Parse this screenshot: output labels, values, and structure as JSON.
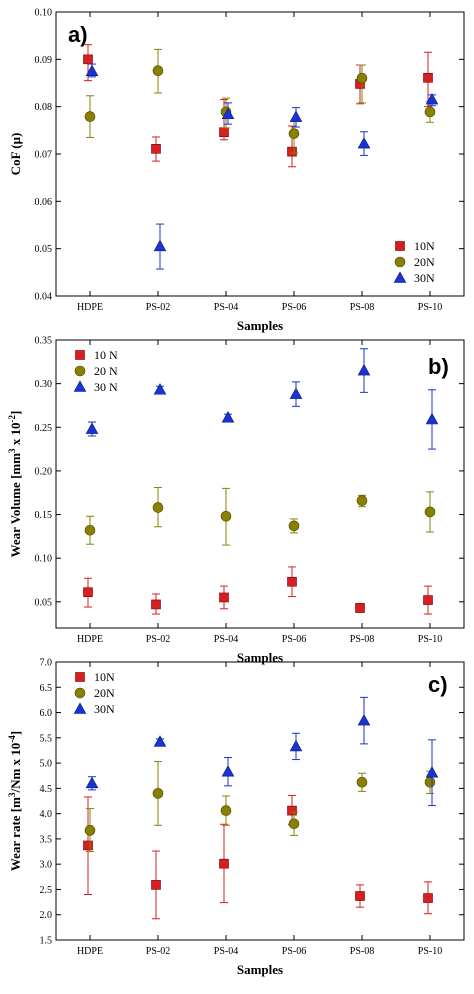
{
  "chart_data": [
    {
      "type": "scatter",
      "panel_label": "a)",
      "categories": [
        "HDPE",
        "PS-02",
        "PS-04",
        "PS-06",
        "PS-08",
        "PS-10"
      ],
      "xlabel": "Samples",
      "ylabel": "CoF (μ)",
      "ylim": [
        0.04,
        0.1
      ],
      "yticks": [
        "0.04",
        "0.05",
        "0.06",
        "0.07",
        "0.08",
        "0.09",
        "0.10"
      ],
      "legend_position": "bottom-right",
      "grid": false,
      "series": [
        {
          "name": "10N",
          "color": "#d42020",
          "marker": "square",
          "values": [
            0.09,
            0.0711,
            0.0746,
            0.0705,
            0.0848,
            0.0861
          ],
          "err_low": [
            0.0855,
            0.0685,
            0.073,
            0.0673,
            0.0806,
            0.08
          ],
          "err_high": [
            0.0931,
            0.0736,
            0.0815,
            0.0759,
            0.0888,
            0.0915
          ]
        },
        {
          "name": "20N",
          "color": "#8a8000",
          "marker": "circle",
          "values": [
            0.0779,
            0.0876,
            0.0789,
            0.0743,
            0.086,
            0.0789
          ],
          "err_low": [
            0.0735,
            0.0829,
            0.0755,
            0.0702,
            0.0808,
            0.0767
          ],
          "err_high": [
            0.0823,
            0.0921,
            0.0818,
            0.0769,
            0.0888,
            0.0811
          ]
        },
        {
          "name": "30N",
          "color": "#1a33d1",
          "marker": "triangle",
          "values": [
            0.0875,
            0.0505,
            0.0784,
            0.0778,
            0.0722,
            0.0815
          ],
          "err_low": [
            0.0863,
            0.0457,
            0.0763,
            0.0757,
            0.0697,
            0.0802
          ],
          "err_high": [
            0.089,
            0.0552,
            0.0808,
            0.0798,
            0.0747,
            0.0825
          ]
        }
      ]
    },
    {
      "type": "scatter",
      "panel_label": "b)",
      "categories": [
        "HDPE",
        "PS-02",
        "PS-04",
        "PS-06",
        "PS-08",
        "PS-10"
      ],
      "xlabel": "Samples",
      "ylabel_main": "Wear Volume [mm",
      "ylabel_sup1": "3",
      "ylabel_mid": " x 10",
      "ylabel_sup2": "-2",
      "ylabel_end": "]",
      "ylim": [
        0.02,
        0.35
      ],
      "yticks": [
        "0.05",
        "0.10",
        "0.15",
        "0.20",
        "0.25",
        "0.30",
        "0.35"
      ],
      "legend_position": "top-left",
      "grid": false,
      "series": [
        {
          "name": "10 N",
          "color": "#d42020",
          "marker": "square",
          "values": [
            0.061,
            0.047,
            0.055,
            0.073,
            0.043,
            0.052
          ],
          "err_low": [
            0.044,
            0.036,
            0.042,
            0.056,
            0.038,
            0.036
          ],
          "err_high": [
            0.077,
            0.059,
            0.068,
            0.09,
            0.048,
            0.068
          ]
        },
        {
          "name": "20 N",
          "color": "#8a8000",
          "marker": "circle",
          "values": [
            0.132,
            0.158,
            0.148,
            0.137,
            0.166,
            0.153
          ],
          "err_low": [
            0.116,
            0.136,
            0.115,
            0.129,
            0.159,
            0.13
          ],
          "err_high": [
            0.148,
            0.181,
            0.18,
            0.145,
            0.172,
            0.176
          ]
        },
        {
          "name": "30 N",
          "color": "#1a33d1",
          "marker": "triangle",
          "values": [
            0.248,
            0.293,
            0.261,
            0.288,
            0.315,
            0.259
          ],
          "err_low": [
            0.24,
            0.289,
            0.257,
            0.274,
            0.29,
            0.225
          ],
          "err_high": [
            0.256,
            0.297,
            0.265,
            0.302,
            0.34,
            0.293
          ]
        }
      ]
    },
    {
      "type": "scatter",
      "panel_label": "c)",
      "categories": [
        "HDPE",
        "PS-02",
        "PS-04",
        "PS-06",
        "PS-08",
        "PS-10"
      ],
      "xlabel": "Samples",
      "ylabel_main": "Wear rate [m",
      "ylabel_sup1": "3",
      "ylabel_mid": "/Nm x 10",
      "ylabel_sup2": "-4",
      "ylabel_end": "]",
      "ylim": [
        1.5,
        7.0
      ],
      "yticks": [
        "1.5",
        "2.0",
        "2.5",
        "3.0",
        "3.5",
        "4.0",
        "4.5",
        "5.0",
        "5.5",
        "6.0",
        "6.5",
        "7.0"
      ],
      "legend_position": "top-left",
      "grid": false,
      "series": [
        {
          "name": "10N",
          "color": "#d42020",
          "marker": "square",
          "values": [
            3.37,
            2.59,
            3.01,
            4.06,
            2.37,
            2.33
          ],
          "err_low": [
            2.4,
            1.92,
            2.24,
            3.78,
            2.15,
            2.02
          ],
          "err_high": [
            4.33,
            3.26,
            3.79,
            4.36,
            2.59,
            2.65
          ]
        },
        {
          "name": "20N",
          "color": "#8a8000",
          "marker": "circle",
          "values": [
            3.67,
            4.4,
            4.06,
            3.8,
            4.62,
            4.62
          ],
          "err_low": [
            3.25,
            3.77,
            3.77,
            3.57,
            4.44,
            4.4
          ],
          "err_high": [
            4.1,
            5.03,
            4.35,
            4.03,
            4.8,
            4.84
          ]
        },
        {
          "name": "30N",
          "color": "#1a33d1",
          "marker": "triangle",
          "values": [
            4.6,
            5.42,
            4.83,
            5.33,
            5.84,
            4.81
          ],
          "err_low": [
            4.47,
            5.36,
            4.55,
            5.07,
            5.38,
            4.16
          ],
          "err_high": [
            4.73,
            5.48,
            5.11,
            5.59,
            6.3,
            5.46
          ]
        }
      ]
    }
  ]
}
